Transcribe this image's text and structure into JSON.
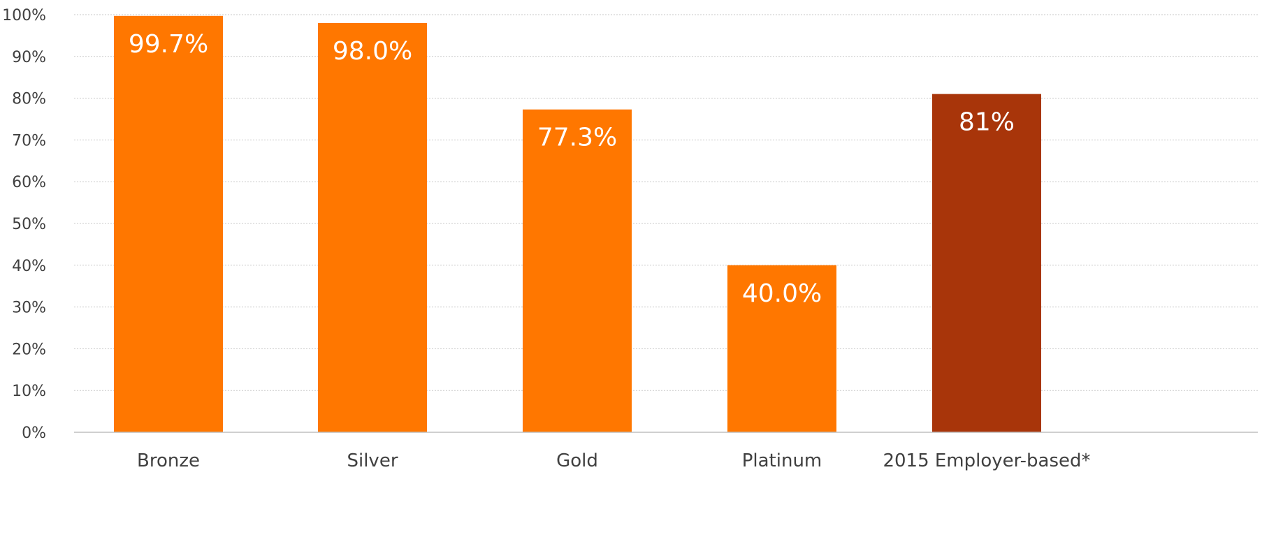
{
  "chart_data": {
    "type": "bar",
    "categories": [
      "Bronze",
      "Silver",
      "Gold",
      "Platinum",
      "2015 Employer-based*"
    ],
    "values": [
      99.7,
      98.0,
      77.3,
      40.0,
      81
    ],
    "data_labels": [
      "99.7%",
      "98.0%",
      "77.3%",
      "40.0%",
      "81%"
    ],
    "bar_colors": [
      "#ff7700",
      "#ff7700",
      "#ff7700",
      "#ff7700",
      "#a8350a"
    ],
    "title": "",
    "xlabel": "",
    "ylabel": "",
    "ylim": [
      0,
      100
    ],
    "y_ticks": [
      0,
      10,
      20,
      30,
      40,
      50,
      60,
      70,
      80,
      90,
      100
    ],
    "y_tick_labels": [
      "0%",
      "10%",
      "20%",
      "30%",
      "40%",
      "50%",
      "60%",
      "70%",
      "80%",
      "90%",
      "100%"
    ],
    "grid": true,
    "legend": "none"
  }
}
